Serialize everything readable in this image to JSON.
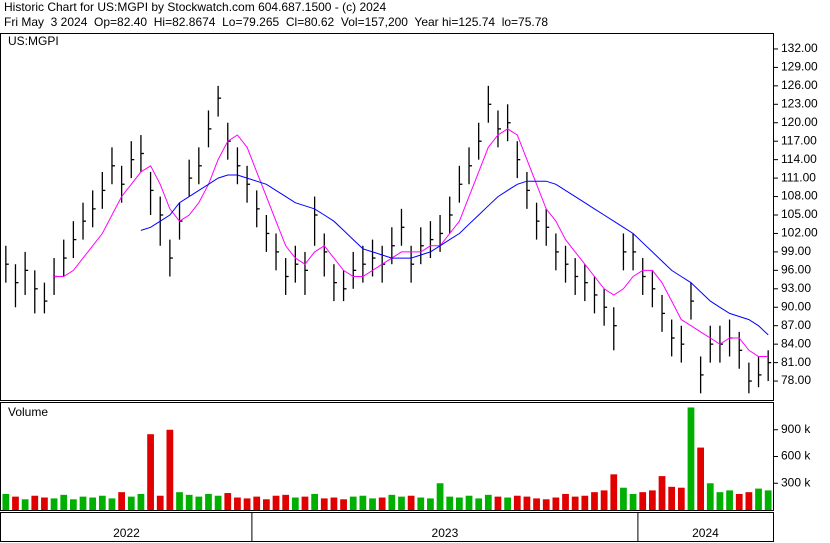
{
  "chart_data": [
    {
      "type": "ohlc",
      "title": "Historic Chart for US:MGPI by Stockwatch.com 604.687.1500 - (c) 2024",
      "subtitle": "Fri May  3 2024  Op=82.40  Hi=82.8674  Lo=79.265  Cl=80.62  Vol=157,200  Year hi=125.74  lo=75.78",
      "label": "US:MGPI",
      "color": "#000000",
      "categories": [
        "2022",
        null,
        null,
        null,
        null,
        null,
        null,
        null,
        null,
        null,
        null,
        null,
        null,
        null,
        null,
        null,
        null,
        null,
        null,
        null,
        null,
        null,
        null,
        null,
        null,
        null,
        "2023",
        null,
        null,
        null,
        null,
        null,
        null,
        null,
        null,
        null,
        null,
        null,
        null,
        null,
        null,
        null,
        null,
        null,
        null,
        null,
        null,
        null,
        null,
        null,
        null,
        null,
        null,
        null,
        null,
        null,
        null,
        null,
        null,
        null,
        null,
        null,
        null,
        null,
        null,
        null,
        "2024",
        null,
        null,
        null,
        null,
        null,
        null,
        null,
        null,
        null,
        null,
        null,
        null,
        null
      ],
      "high": [
        100,
        97,
        99,
        96,
        94,
        98,
        101,
        104,
        107,
        109,
        112,
        116,
        113,
        117,
        118,
        112,
        108,
        101,
        107,
        114,
        116,
        122,
        126,
        120,
        116,
        113,
        109,
        105,
        102,
        98,
        100,
        99,
        108,
        102,
        97,
        96,
        99,
        100,
        101,
        100,
        103,
        106,
        100,
        103,
        104,
        105,
        108,
        113,
        116,
        120,
        126,
        122,
        123,
        117,
        112,
        107,
        106,
        102,
        100,
        98,
        97,
        95,
        93,
        90,
        102,
        102,
        98,
        96,
        92,
        88,
        87,
        94,
        82,
        87,
        87,
        88,
        86,
        81,
        82,
        83
      ],
      "low": [
        94,
        90,
        92,
        89,
        89,
        92,
        95,
        98,
        101,
        103,
        106,
        110,
        107,
        111,
        112,
        105,
        100,
        95,
        101,
        108,
        110,
        116,
        121,
        114,
        110,
        107,
        103,
        99,
        96,
        92,
        94,
        92,
        100,
        95,
        91,
        91,
        93,
        94,
        95,
        94,
        97,
        100,
        94,
        97,
        98,
        99,
        102,
        107,
        110,
        114,
        120,
        116,
        117,
        111,
        106,
        101,
        100,
        96,
        94,
        92,
        91,
        89,
        87,
        83,
        96,
        96,
        92,
        90,
        86,
        82,
        81,
        88,
        76,
        81,
        81,
        82,
        80,
        76,
        77,
        78
      ],
      "close": [
        97,
        94,
        96,
        93,
        91,
        95,
        98,
        101,
        104,
        106,
        109,
        113,
        110,
        114,
        115,
        109,
        105,
        98,
        104,
        111,
        113,
        119,
        124,
        117,
        113,
        110,
        106,
        102,
        99,
        95,
        97,
        96,
        105,
        99,
        94,
        93,
        96,
        97,
        98,
        97,
        100,
        103,
        97,
        100,
        101,
        102,
        105,
        110,
        113,
        117,
        123,
        119,
        120,
        114,
        109,
        104,
        103,
        99,
        97,
        95,
        94,
        92,
        90,
        87,
        99,
        99,
        95,
        93,
        89,
        85,
        84,
        91,
        79,
        84,
        84,
        85,
        83,
        78,
        79,
        81
      ],
      "moving_averages": [
        {
          "color": "#ff00ff",
          "values": [
            null,
            null,
            null,
            null,
            null,
            95,
            95,
            96,
            98,
            100,
            102,
            105,
            108,
            110,
            112,
            113,
            110,
            106,
            104,
            105,
            107,
            110,
            114,
            117,
            118,
            116,
            112,
            108,
            104,
            100,
            98,
            97,
            99,
            100,
            98,
            96,
            95,
            95,
            96,
            97,
            98,
            99,
            99,
            99,
            100,
            100,
            102,
            104,
            108,
            112,
            116,
            118,
            119,
            118,
            114,
            110,
            106,
            104,
            101,
            99,
            97,
            95,
            93,
            92,
            93,
            95,
            96,
            96,
            94,
            91,
            88,
            87,
            86,
            85,
            84,
            85,
            85,
            83,
            82,
            82
          ]
        },
        {
          "color": "#0000ff",
          "values": [
            null,
            null,
            null,
            null,
            null,
            null,
            null,
            null,
            null,
            null,
            null,
            null,
            null,
            null,
            102.5,
            103,
            104,
            105,
            107,
            108,
            109,
            110,
            111,
            111.5,
            111.5,
            111,
            110.5,
            110,
            109,
            108,
            107,
            106.5,
            106,
            105,
            104,
            102.5,
            101,
            99.5,
            99,
            98.5,
            98,
            98,
            98,
            98.5,
            99,
            100,
            101,
            102,
            103.5,
            105,
            106.5,
            108,
            109,
            110,
            110.5,
            110.5,
            110.5,
            110,
            109,
            108,
            107,
            106,
            105,
            104,
            103,
            102,
            100.5,
            99,
            97.5,
            96,
            95,
            94,
            92.5,
            91,
            90,
            89,
            88.5,
            88,
            87,
            85.5
          ]
        }
      ],
      "ylim": [
        74.92,
        134.43
      ],
      "yticks": [
        {
          "value": 78,
          "label": "78.00"
        },
        {
          "value": 81,
          "label": "81.00"
        },
        {
          "value": 84,
          "label": "84.00"
        },
        {
          "value": 87,
          "label": "87.00"
        },
        {
          "value": 90,
          "label": "90.00"
        },
        {
          "value": 93,
          "label": "93.00"
        },
        {
          "value": 96,
          "label": "96.00"
        },
        {
          "value": 99,
          "label": "99.00"
        },
        {
          "value": 102,
          "label": "102.00"
        },
        {
          "value": 105,
          "label": "105.00"
        },
        {
          "value": 108,
          "label": "108.00"
        },
        {
          "value": 111,
          "label": "111.00"
        },
        {
          "value": 114,
          "label": "114.00"
        },
        {
          "value": 117,
          "label": "117.00"
        },
        {
          "value": 120,
          "label": "120.00"
        },
        {
          "value": 123,
          "label": "123.00"
        },
        {
          "value": 126,
          "label": "126.00"
        },
        {
          "value": 129,
          "label": "129.00"
        },
        {
          "value": 132,
          "label": "132.00"
        }
      ]
    },
    {
      "type": "bar",
      "label": "Volume",
      "up_color": "#00b000",
      "down_color": "#e00000",
      "values": [
        180000,
        150000,
        120000,
        160000,
        140000,
        130000,
        170000,
        120000,
        150000,
        140000,
        160000,
        130000,
        200000,
        150000,
        180000,
        850000,
        160000,
        900000,
        200000,
        170000,
        150000,
        180000,
        160000,
        190000,
        140000,
        130000,
        150000,
        120000,
        160000,
        170000,
        140000,
        150000,
        180000,
        130000,
        140000,
        120000,
        150000,
        160000,
        130000,
        140000,
        170000,
        150000,
        160000,
        140000,
        130000,
        300000,
        150000,
        140000,
        160000,
        130000,
        170000,
        150000,
        140000,
        160000,
        150000,
        130000,
        120000,
        140000,
        180000,
        150000,
        160000,
        200000,
        220000,
        400000,
        250000,
        180000,
        200000,
        220000,
        380000,
        260000,
        250000,
        1150000,
        700000,
        300000,
        200000,
        220000,
        180000,
        200000,
        240000,
        220000
      ],
      "ylim": [
        0,
        1200000
      ],
      "yticks": [
        {
          "value": 300000,
          "label": "300 k"
        },
        {
          "value": 600000,
          "label": "600 k"
        },
        {
          "value": 900000,
          "label": "900 k"
        }
      ]
    }
  ]
}
